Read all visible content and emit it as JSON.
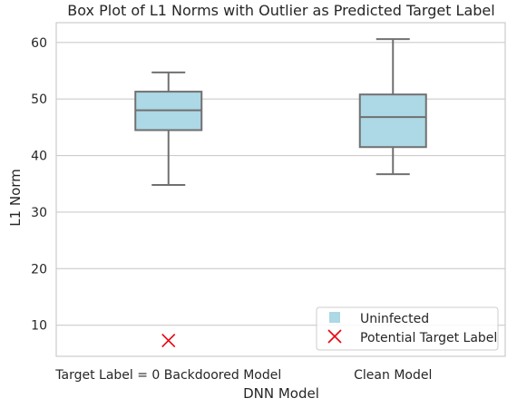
{
  "chart_data": {
    "type": "box",
    "title": "Box Plot of L1 Norms with Outlier as Predicted Target Label",
    "xlabel": "DNN Model",
    "ylabel": "L1 Norm",
    "ylim": [
      4.5,
      63.5
    ],
    "yticks": [
      10,
      20,
      30,
      40,
      50,
      60
    ],
    "categories": [
      "Target Label = 0 Backdoored Model",
      "Clean Model"
    ],
    "boxes": [
      {
        "category": "Target Label = 0 Backdoored Model",
        "whisker_low": 34.8,
        "q1": 44.5,
        "median": 48.0,
        "q3": 51.3,
        "whisker_high": 54.7
      },
      {
        "category": "Clean Model",
        "whisker_low": 36.7,
        "q1": 41.5,
        "median": 46.8,
        "q3": 50.8,
        "whisker_high": 60.6
      }
    ],
    "markers": [
      {
        "category": "Target Label = 0 Backdoored Model",
        "value": 7.3,
        "series": "Potential Target Label"
      }
    ],
    "legend": {
      "position": "lower-right",
      "entries": [
        {
          "label": "Uninfected",
          "symbol": "square",
          "color": "#add8e6"
        },
        {
          "label": "Potential Target Label",
          "symbol": "x",
          "color": "#e8000b"
        }
      ]
    },
    "colors": {
      "box_fill": "#add8e6",
      "box_line": "#707070",
      "grid": "#cccccc",
      "marker": "#e8000b"
    },
    "grid": "horizontal"
  }
}
